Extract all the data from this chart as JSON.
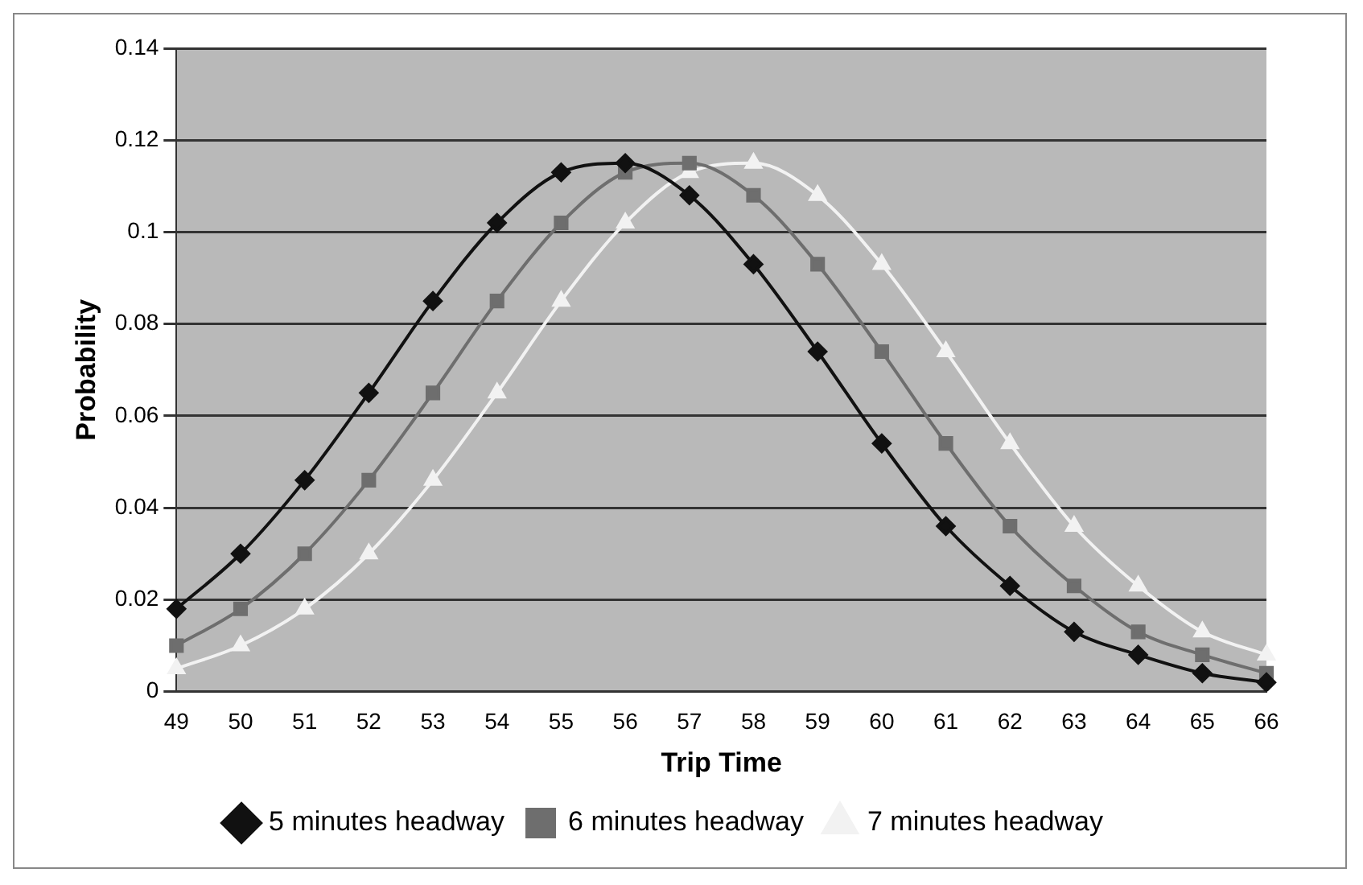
{
  "chart_data": {
    "type": "line",
    "xlabel": "Trip Time",
    "ylabel": "Probability",
    "categories": [
      "49",
      "50",
      "51",
      "52",
      "53",
      "54",
      "55",
      "56",
      "57",
      "58",
      "59",
      "60",
      "61",
      "62",
      "63",
      "64",
      "65",
      "66"
    ],
    "series": [
      {
        "name": "5 minutes headway",
        "color": "#111111",
        "marker": "diamond",
        "values": [
          0.018,
          0.03,
          0.046,
          0.065,
          0.085,
          0.102,
          0.113,
          0.115,
          0.108,
          0.093,
          0.074,
          0.054,
          0.036,
          0.023,
          0.013,
          0.008,
          0.004,
          0.002
        ]
      },
      {
        "name": "6 minutes headway",
        "color": "#6e6e6e",
        "marker": "square",
        "values": [
          0.01,
          0.018,
          0.03,
          0.046,
          0.065,
          0.085,
          0.102,
          0.113,
          0.115,
          0.108,
          0.093,
          0.074,
          0.054,
          0.036,
          0.023,
          0.013,
          0.008,
          0.004
        ]
      },
      {
        "name": "7 minutes headway",
        "color": "#f2f2f2",
        "marker": "triangle",
        "values": [
          0.005,
          0.01,
          0.018,
          0.03,
          0.046,
          0.065,
          0.085,
          0.102,
          0.113,
          0.115,
          0.108,
          0.093,
          0.074,
          0.054,
          0.036,
          0.023,
          0.013,
          0.008
        ]
      }
    ],
    "ylim": [
      0,
      0.14
    ],
    "yticks": [
      0,
      0.02,
      0.04,
      0.06,
      0.08,
      0.1,
      0.12,
      0.14
    ],
    "grid": "y",
    "legend": "bottom"
  }
}
